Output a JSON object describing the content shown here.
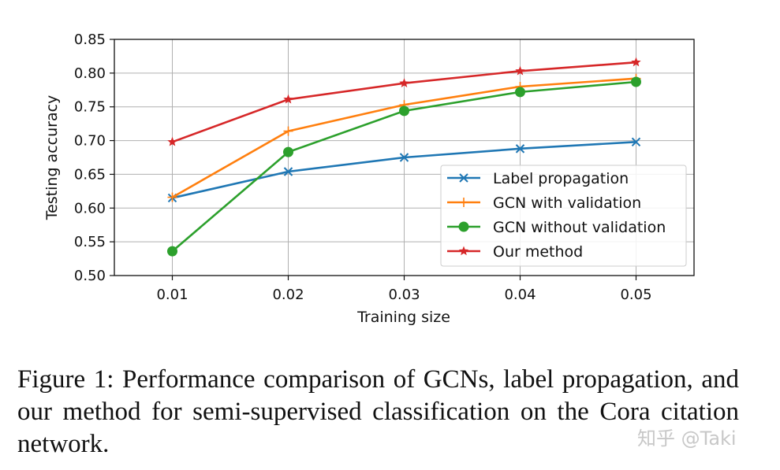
{
  "chart_data": {
    "type": "line",
    "title": "",
    "xlabel": "Training size",
    "ylabel": "Testing accuracy",
    "x": [
      0.01,
      0.02,
      0.03,
      0.04,
      0.05
    ],
    "x_tick_labels": [
      "0.01",
      "0.02",
      "0.03",
      "0.04",
      "0.05"
    ],
    "y_tick_labels": [
      "0.50",
      "0.55",
      "0.60",
      "0.65",
      "0.70",
      "0.75",
      "0.80",
      "0.85"
    ],
    "xlim": [
      0.005,
      0.055
    ],
    "ylim": [
      0.5,
      0.85
    ],
    "grid": true,
    "legend_position": "lower-right",
    "series": [
      {
        "name": "Label propagation",
        "values": [
          0.615,
          0.654,
          0.675,
          0.688,
          0.698
        ],
        "color": "#1f77b4",
        "marker": "x"
      },
      {
        "name": "GCN with validation",
        "values": [
          0.616,
          0.714,
          0.753,
          0.78,
          0.792
        ],
        "color": "#ff7f0e",
        "marker": "+"
      },
      {
        "name": "GCN without validation",
        "values": [
          0.536,
          0.683,
          0.744,
          0.772,
          0.787
        ],
        "color": "#2ca02c",
        "marker": "o"
      },
      {
        "name": "Our method",
        "values": [
          0.698,
          0.761,
          0.785,
          0.803,
          0.816
        ],
        "color": "#d62728",
        "marker": "*"
      }
    ]
  },
  "caption": "Figure 1: Performance comparison of GCNs, label propagation, and our method for semi-supervised classification on the Cora citation network.",
  "watermark": "知乎 @Taki"
}
